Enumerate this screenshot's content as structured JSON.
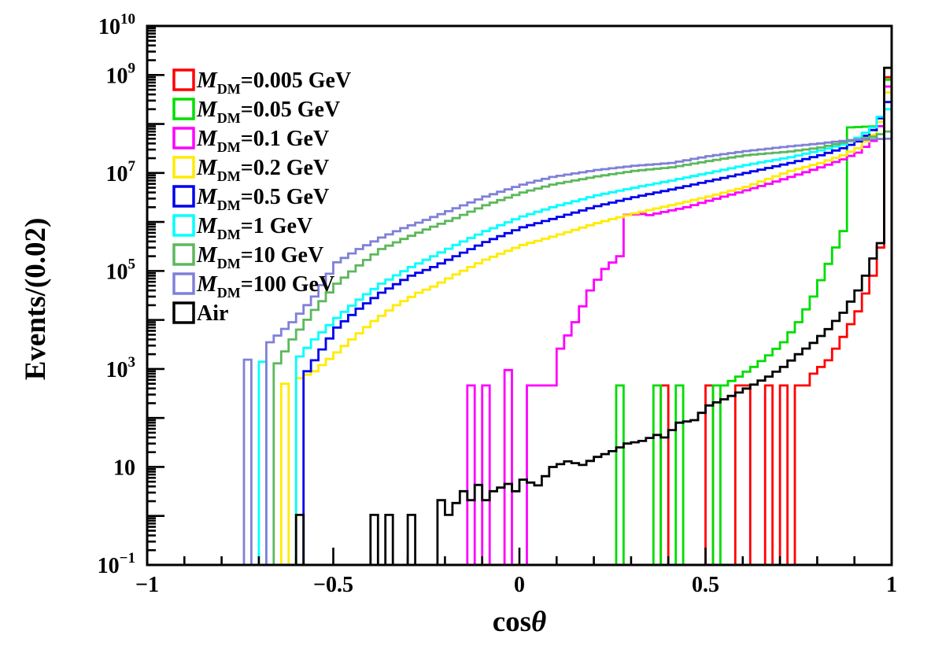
{
  "chart_data": {
    "type": "bar",
    "subtype": "step-histograms-log-y",
    "title": "",
    "xlabel_plain": "cos",
    "xlabel_italic": "θ",
    "ylabel": "Events/(0.02)",
    "bin_width": 0.02,
    "x_range": [
      -1,
      1
    ],
    "y_scale": "log",
    "y_exp_range": [
      -1,
      10
    ],
    "grid": false,
    "legend_position": "top-left",
    "x_major_ticks": [
      -1,
      -0.5,
      0,
      0.5,
      1
    ],
    "x_tick_labels": [
      "−1",
      "−0.5",
      "0",
      "0.5",
      "1"
    ],
    "x_minor_step": 0.1,
    "y_labeled_exps": [
      -1,
      1,
      3,
      5,
      7,
      9,
      10
    ],
    "series": [
      {
        "name": "mdm-0.005-gev",
        "legend": {
          "m": "M",
          "sub": "DM",
          "rest": "=0.005 GeV"
        },
        "color": "#ff0000",
        "segments": [
          [
            [
              0.38,
              460
            ]
          ],
          [
            [
              0.5,
              460
            ]
          ],
          [
            [
              0.58,
              460
            ],
            [
              0.6,
              460
            ]
          ],
          [
            [
              0.66,
              460
            ]
          ],
          [
            [
              0.7,
              460
            ]
          ],
          [
            [
              0.74,
              460
            ],
            [
              0.76,
              460
            ],
            [
              0.78,
              800
            ],
            [
              0.82,
              1500
            ],
            [
              0.86,
              4500
            ],
            [
              0.9,
              15000
            ],
            [
              0.94,
              80000
            ],
            [
              0.96,
              300000
            ],
            [
              0.98,
              900000000
            ]
          ]
        ]
      },
      {
        "name": "mdm-0.05-gev",
        "legend": {
          "m": "M",
          "sub": "DM",
          "rest": "=0.05 GeV"
        },
        "color": "#00dd00",
        "segments": [
          [
            [
              0.26,
              460
            ]
          ],
          [
            [
              0.36,
              460
            ]
          ],
          [
            [
              0.42,
              460
            ]
          ],
          [
            [
              0.52,
              460
            ]
          ],
          [
            [
              0.54,
              460
            ],
            [
              0.58,
              700
            ],
            [
              0.62,
              1100
            ],
            [
              0.66,
              1900
            ],
            [
              0.7,
              3500
            ],
            [
              0.74,
              9000
            ],
            [
              0.78,
              30000
            ],
            [
              0.82,
              140000
            ],
            [
              0.86,
              650000
            ],
            [
              0.88,
              85000000
            ],
            [
              0.92,
              88000000
            ],
            [
              0.96,
              90000000
            ],
            [
              0.98,
              800000000
            ]
          ]
        ]
      },
      {
        "name": "mdm-0.1-gev",
        "legend": {
          "m": "M",
          "sub": "DM",
          "rest": "=0.1 GeV"
        },
        "color": "#ff00ff",
        "segments": [
          [
            [
              -0.14,
              460
            ]
          ],
          [
            [
              -0.1,
              460
            ]
          ],
          [
            [
              -0.04,
              950
            ]
          ],
          [
            [
              0.02,
              460
            ],
            [
              0.08,
              460
            ],
            [
              0.1,
              2600
            ],
            [
              0.14,
              9000
            ],
            [
              0.18,
              40000
            ],
            [
              0.22,
              110000
            ],
            [
              0.26,
              200000
            ],
            [
              0.28,
              1400000
            ],
            [
              0.32,
              1450000
            ],
            [
              0.34,
              1380000
            ],
            [
              0.38,
              1600000
            ],
            [
              0.44,
              2000000
            ],
            [
              0.5,
              2700000
            ],
            [
              0.58,
              4000000
            ],
            [
              0.66,
              6000000
            ],
            [
              0.72,
              8300000
            ],
            [
              0.8,
              13000000
            ],
            [
              0.86,
              19000000
            ],
            [
              0.9,
              26000000
            ],
            [
              0.94,
              45000000
            ],
            [
              0.96,
              90000000
            ],
            [
              0.98,
              580000000
            ]
          ]
        ]
      },
      {
        "name": "mdm-0.2-gev",
        "legend": {
          "m": "M",
          "sub": "DM",
          "rest": "=0.2 GeV"
        },
        "color": "#ffeb00",
        "segments": [
          [
            [
              -0.64,
              500
            ]
          ],
          [
            [
              -0.6,
              650
            ],
            [
              -0.56,
              900
            ],
            [
              -0.52,
              1600
            ],
            [
              -0.46,
              4000
            ],
            [
              -0.4,
              9500
            ],
            [
              -0.34,
              20000
            ],
            [
              -0.28,
              36000
            ],
            [
              -0.24,
              48000
            ],
            [
              -0.18,
              85000
            ],
            [
              -0.1,
              170000
            ],
            [
              0.0,
              340000
            ],
            [
              0.08,
              500000
            ],
            [
              0.2,
              950000
            ],
            [
              0.3,
              1500000
            ],
            [
              0.4,
              2200000
            ],
            [
              0.5,
              3300000
            ],
            [
              0.6,
              5200000
            ],
            [
              0.72,
              11000000
            ],
            [
              0.8,
              16000000
            ],
            [
              0.86,
              23000000
            ],
            [
              0.9,
              32000000
            ],
            [
              0.94,
              60000000
            ],
            [
              0.96,
              110000000
            ],
            [
              0.98,
              440000000
            ]
          ]
        ]
      },
      {
        "name": "mdm-0.5-gev",
        "legend": {
          "m": "M",
          "sub": "DM",
          "rest": "=0.5 GeV"
        },
        "color": "#0000ee",
        "segments": [
          [
            [
              -0.58,
              900
            ],
            [
              -0.54,
              2500
            ],
            [
              -0.5,
              7000
            ],
            [
              -0.44,
              17000
            ],
            [
              -0.38,
              36000
            ],
            [
              -0.3,
              80000
            ],
            [
              -0.24,
              120000
            ],
            [
              -0.18,
              200000
            ],
            [
              -0.1,
              390000
            ],
            [
              0.0,
              780000
            ],
            [
              0.08,
              1150000
            ],
            [
              0.2,
              2100000
            ],
            [
              0.3,
              3200000
            ],
            [
              0.4,
              4600000
            ],
            [
              0.5,
              6800000
            ],
            [
              0.6,
              10000000
            ],
            [
              0.72,
              16000000
            ],
            [
              0.8,
              23000000
            ],
            [
              0.86,
              32000000
            ],
            [
              0.9,
              44000000
            ],
            [
              0.94,
              75000000
            ],
            [
              0.96,
              130000000
            ],
            [
              0.98,
              280000000
            ]
          ]
        ]
      },
      {
        "name": "mdm-1-gev",
        "legend": {
          "m": "M",
          "sub": "DM",
          "rest": "=1 GeV"
        },
        "color": "#00ffff",
        "segments": [
          [
            [
              -0.7,
              1400
            ]
          ],
          [
            [
              -0.6,
              1800
            ],
            [
              -0.56,
              4000
            ],
            [
              -0.5,
              11000
            ],
            [
              -0.44,
              26000
            ],
            [
              -0.38,
              55000
            ],
            [
              -0.3,
              120000
            ],
            [
              -0.24,
              200000
            ],
            [
              -0.18,
              340000
            ],
            [
              -0.1,
              650000
            ],
            [
              0.0,
              1300000
            ],
            [
              0.08,
              2000000
            ],
            [
              0.2,
              3500000
            ],
            [
              0.3,
              5000000
            ],
            [
              0.4,
              7000000
            ],
            [
              0.5,
              10000000
            ],
            [
              0.6,
              14500000
            ],
            [
              0.72,
              21000000
            ],
            [
              0.8,
              29000000
            ],
            [
              0.86,
              38000000
            ],
            [
              0.9,
              52000000
            ],
            [
              0.94,
              85000000
            ],
            [
              0.96,
              140000000
            ],
            [
              0.98,
              200000000
            ]
          ]
        ]
      },
      {
        "name": "mdm-10-gev",
        "legend": {
          "m": "M",
          "sub": "DM",
          "rest": "=10 GeV"
        },
        "color": "#5cb85c",
        "segments": [
          [
            [
              -0.66,
              1300
            ],
            [
              -0.62,
              4000
            ],
            [
              -0.56,
              16000
            ],
            [
              -0.5,
              55000
            ],
            [
              -0.44,
              130000
            ],
            [
              -0.38,
              280000
            ],
            [
              -0.32,
              450000
            ],
            [
              -0.26,
              700000
            ],
            [
              -0.18,
              1200000
            ],
            [
              -0.1,
              2200000
            ],
            [
              0.0,
              4000000
            ],
            [
              0.08,
              5800000
            ],
            [
              0.2,
              8500000
            ],
            [
              0.3,
              11000000
            ],
            [
              0.4,
              13000000
            ],
            [
              0.5,
              17500000
            ],
            [
              0.6,
              23000000
            ],
            [
              0.72,
              27500000
            ],
            [
              0.8,
              33000000
            ],
            [
              0.88,
              45000000
            ],
            [
              0.94,
              55000000
            ],
            [
              0.98,
              70000000
            ]
          ]
        ]
      },
      {
        "name": "mdm-100-gev",
        "legend": {
          "m": "M",
          "sub": "DM",
          "rest": "=100 GeV"
        },
        "color": "#8080d8",
        "segments": [
          [
            [
              -0.74,
              1550
            ]
          ],
          [
            [
              -0.68,
              3500
            ],
            [
              -0.62,
              9000
            ],
            [
              -0.56,
              30000
            ],
            [
              -0.5,
              150000
            ],
            [
              -0.44,
              280000
            ],
            [
              -0.38,
              480000
            ],
            [
              -0.32,
              750000
            ],
            [
              -0.26,
              1100000
            ],
            [
              -0.18,
              1900000
            ],
            [
              -0.1,
              3300000
            ],
            [
              0.0,
              5800000
            ],
            [
              0.08,
              8300000
            ],
            [
              0.2,
              11500000
            ],
            [
              0.3,
              14000000
            ],
            [
              0.4,
              16000000
            ],
            [
              0.5,
              22000000
            ],
            [
              0.6,
              28000000
            ],
            [
              0.72,
              35000000
            ],
            [
              0.8,
              40000000
            ],
            [
              0.88,
              47000000
            ],
            [
              0.98,
              50000000
            ]
          ]
        ]
      },
      {
        "name": "air",
        "legend": {
          "rest": "Air"
        },
        "color": "#000000",
        "segments": [
          [
            [
              -0.6,
              1.05
            ]
          ],
          [
            [
              -0.4,
              1.05
            ]
          ],
          [
            [
              -0.36,
              1.05
            ]
          ],
          [
            [
              -0.3,
              1.05
            ]
          ],
          [
            [
              -0.22,
              2.1
            ],
            [
              -0.2,
              1.05
            ],
            [
              -0.16,
              3.2
            ],
            [
              -0.14,
              2.1
            ],
            [
              -0.12,
              4.3
            ],
            [
              -0.1,
              2.1
            ],
            [
              -0.08,
              3.2
            ],
            [
              -0.04,
              4.5
            ],
            [
              -0.02,
              3.2
            ],
            [
              0.0,
              5.5
            ],
            [
              0.04,
              4.2
            ],
            [
              0.08,
              10
            ],
            [
              0.12,
              13
            ],
            [
              0.16,
              11
            ],
            [
              0.2,
              16
            ],
            [
              0.24,
              21
            ],
            [
              0.28,
              30
            ],
            [
              0.32,
              34
            ],
            [
              0.36,
              45
            ],
            [
              0.38,
              40
            ],
            [
              0.42,
              80
            ],
            [
              0.46,
              90
            ],
            [
              0.5,
              180
            ],
            [
              0.54,
              240
            ],
            [
              0.58,
              330
            ],
            [
              0.62,
              480
            ],
            [
              0.66,
              700
            ],
            [
              0.7,
              1100
            ],
            [
              0.74,
              2000
            ],
            [
              0.78,
              3400
            ],
            [
              0.82,
              6500
            ],
            [
              0.86,
              14000
            ],
            [
              0.9,
              40000
            ],
            [
              0.92,
              80000
            ],
            [
              0.94,
              180000
            ],
            [
              0.96,
              370000
            ],
            [
              0.98,
              1400000000.0
            ]
          ]
        ]
      }
    ]
  }
}
